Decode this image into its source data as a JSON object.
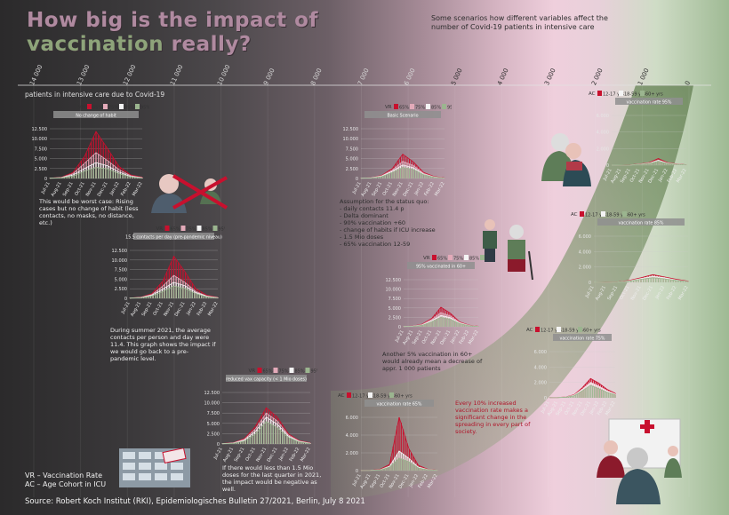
{
  "title_part1": "How big is the impact of ",
  "title_accent": "vaccination",
  "title_part2": " really?",
  "subtitle": "Some scenarios how different variables affect the number of Covid-19 patients in intensive care",
  "top_axis": {
    "labels": [
      "14 000",
      "13 000",
      "12 000",
      "11 000",
      "10 000",
      "9 000",
      "8 000",
      "7 000",
      "6 000",
      "5 000",
      "4 000",
      "3 000",
      "2 000",
      "1 000",
      "0"
    ]
  },
  "y_axis_caption": "patients in intensive care due to Covid-19",
  "legend_lines": [
    "VR – Vaccination Rate",
    "AC – Age Cohort in ICU"
  ],
  "source": "Source: Robert Koch Institut (RKI), Epidemiologisches Bulletin 27/2021, Berlin, July 8 2021",
  "notes": {
    "worst": "This would be worst case: Rising cases but no change of habit (less contacts, no masks, no distance, etc.)",
    "contacts": "During summer 2021, the average contacts per person and day were 11.4. This graph shows the impact if we would go back to a pre-pandemic level.",
    "doses": "If there would less than 1.5 Mio doses for the last quarter in 2021, the impact would be negative as well.",
    "basic": "Assumption for the status quo:\n- daily contacts 11.4 p\n- Delta dominant\n- 90% vaccination +60\n- change of habits if ICU increase\n- 1.5 Mio doses\n- 65% vaccination 12-59",
    "sixty": "Another 5% vaccination in 60+ would already mean a decrease of appr. 1 000 patients",
    "increase": "Every 10% increased vaccination rate makes a significant change in the spreading in every part of society."
  },
  "colors": {
    "red": "#c8102e",
    "pink": "#e3aab9",
    "white": "#f4f4f4",
    "green": "#9bb58f",
    "dark_green": "#5d7a55"
  },
  "chart_data": [
    {
      "type": "area",
      "title": "No change of habit",
      "legend_prefix": "VR",
      "legend": [
        "65%",
        "75%",
        "85%",
        "95%"
      ],
      "yticks": [
        "12.500",
        "10.000",
        "7.500",
        "5.000",
        "2.500",
        "0"
      ],
      "ymax": 12500,
      "x": [
        "Jul-21",
        "Aug-21",
        "Sep-21",
        "Oct-21",
        "Nov-21",
        "Dec-21",
        "Jan-22",
        "Feb-22",
        "Mar-22"
      ],
      "series": [
        {
          "name": "65%",
          "values": [
            100,
            300,
            1500,
            5500,
            11800,
            7500,
            3000,
            900,
            300
          ]
        },
        {
          "name": "75%",
          "values": [
            80,
            250,
            1200,
            3800,
            6500,
            4500,
            2200,
            700,
            200
          ]
        },
        {
          "name": "85%",
          "values": [
            60,
            200,
            900,
            2500,
            4000,
            3200,
            1600,
            500,
            150
          ]
        },
        {
          "name": "95%",
          "values": [
            40,
            150,
            600,
            1800,
            2800,
            2400,
            1200,
            400,
            100
          ]
        }
      ]
    },
    {
      "type": "area",
      "title": "15.5 contacts per day (pre-pandemic niveau)",
      "legend_prefix": "VR",
      "legend": [
        "65%",
        "75%",
        "85%",
        "95%"
      ],
      "yticks": [
        "12.500",
        "10.000",
        "7.500",
        "5.000",
        "2.500",
        "0"
      ],
      "ymax": 12500,
      "x": [
        "Jul-21",
        "Aug-21",
        "Sep-21",
        "Oct-21",
        "Nov-21",
        "Dec-21",
        "Jan-22",
        "Feb-22",
        "Mar-22"
      ],
      "series": [
        {
          "name": "65%",
          "values": [
            100,
            300,
            1200,
            4500,
            11000,
            7000,
            2500,
            800,
            250
          ]
        },
        {
          "name": "75%",
          "values": [
            80,
            250,
            1000,
            3200,
            6000,
            4200,
            1800,
            600,
            200
          ]
        },
        {
          "name": "85%",
          "values": [
            60,
            200,
            800,
            2400,
            4200,
            3300,
            1500,
            500,
            150
          ]
        },
        {
          "name": "95%",
          "values": [
            40,
            150,
            600,
            1800,
            3200,
            2600,
            1200,
            400,
            100
          ]
        }
      ]
    },
    {
      "type": "area",
      "title": "reduced vax capacity (< 1 Mio doses)",
      "legend_prefix": "VR",
      "legend": [
        "65%",
        "75%",
        "85%",
        "95%"
      ],
      "yticks": [
        "12.500",
        "10.000",
        "7.500",
        "5.000",
        "2.500",
        "0"
      ],
      "ymax": 12500,
      "x": [
        "Jul-21",
        "Aug-21",
        "Sep-21",
        "Oct-21",
        "Nov-21",
        "Dec-21",
        "Jan-22",
        "Feb-22",
        "Mar-22"
      ],
      "series": [
        {
          "name": "65%",
          "values": [
            100,
            300,
            1300,
            4200,
            8800,
            6500,
            2500,
            800,
            250
          ]
        },
        {
          "name": "75%",
          "values": [
            80,
            250,
            1100,
            3600,
            7500,
            5600,
            2200,
            700,
            200
          ]
        },
        {
          "name": "85%",
          "values": [
            60,
            200,
            900,
            3000,
            6500,
            4800,
            1900,
            600,
            150
          ]
        },
        {
          "name": "95%",
          "values": [
            40,
            150,
            700,
            2400,
            5400,
            4000,
            1600,
            500,
            100
          ]
        }
      ]
    },
    {
      "type": "area",
      "title": "Basic Scenario",
      "legend_prefix": "VR",
      "legend": [
        "65%",
        "75%",
        "85%",
        "95%"
      ],
      "yticks": [
        "12.500",
        "10.000",
        "7.500",
        "5.000",
        "2.500",
        "0"
      ],
      "ymax": 12500,
      "x": [
        "Jul-21",
        "Aug-21",
        "Sep-21",
        "Oct-21",
        "Nov-21",
        "Dec-21",
        "Jan-22",
        "Feb-22",
        "Mar-22"
      ],
      "series": [
        {
          "name": "65%",
          "values": [
            100,
            200,
            800,
            2500,
            6100,
            4200,
            1500,
            500,
            150
          ]
        },
        {
          "name": "75%",
          "values": [
            80,
            180,
            700,
            2100,
            4300,
            3300,
            1300,
            400,
            120
          ]
        },
        {
          "name": "85%",
          "values": [
            60,
            150,
            600,
            1800,
            3400,
            2700,
            1100,
            350,
            100
          ]
        },
        {
          "name": "95%",
          "values": [
            40,
            120,
            500,
            1500,
            2800,
            2300,
            950,
            300,
            80
          ]
        }
      ]
    },
    {
      "type": "area",
      "title": "95% vaccinated in 60+",
      "legend_prefix": "VR",
      "legend": [
        "65%",
        "75%",
        "85%",
        "95%"
      ],
      "yticks": [
        "12.500",
        "10.000",
        "7.500",
        "5.000",
        "2.500",
        "0"
      ],
      "ymax": 12500,
      "x": [
        "Jul-21",
        "Aug-21",
        "Sep-21",
        "Oct-21",
        "Nov-21",
        "Dec-21",
        "Jan-22",
        "Feb-22",
        "Mar-22"
      ],
      "series": [
        {
          "name": "65%",
          "values": [
            100,
            200,
            700,
            2200,
            5200,
            3600,
            1300,
            450,
            150
          ]
        },
        {
          "name": "75%",
          "values": [
            80,
            180,
            600,
            1900,
            3800,
            2900,
            1150,
            380,
            120
          ]
        },
        {
          "name": "85%",
          "values": [
            60,
            150,
            500,
            1600,
            3000,
            2400,
            1000,
            330,
            100
          ]
        },
        {
          "name": "95%",
          "values": [
            40,
            120,
            420,
            1300,
            2500,
            2000,
            850,
            280,
            80
          ]
        }
      ]
    },
    {
      "type": "area",
      "title": "vaccination rate 65%",
      "legend_prefix": "AC",
      "legend": [
        "12-17 yrs",
        "18-59 yrs",
        "60+ yrs"
      ],
      "yticks": [
        "6.000",
        "4.000",
        "2.000",
        "0"
      ],
      "ymax": 6000,
      "x": [
        "Jul-21",
        "Aug-21",
        "Sep-21",
        "Oct-21",
        "Nov-21",
        "Dec-21",
        "Jan-22",
        "Feb-22",
        "Mar-22"
      ],
      "series": [
        {
          "name": "12-17 yrs",
          "values": [
            20,
            40,
            150,
            700,
            6200,
            2500,
            600,
            150,
            50
          ]
        },
        {
          "name": "18-59 yrs",
          "values": [
            15,
            30,
            100,
            500,
            2200,
            1400,
            400,
            120,
            40
          ]
        },
        {
          "name": "60+ yrs",
          "values": [
            10,
            20,
            80,
            400,
            1400,
            1000,
            300,
            100,
            30
          ]
        }
      ]
    },
    {
      "type": "area",
      "title": "vaccination rate 75%",
      "legend_prefix": "AC",
      "legend": [
        "12-17 yrs",
        "18-59 yrs",
        "60+ yrs"
      ],
      "yticks": [
        "6.000",
        "4.000",
        "2.000",
        "0"
      ],
      "ymax": 6000,
      "x": [
        "Jul-21",
        "Aug-21",
        "Sep-21",
        "Oct-21",
        "Nov-21",
        "Dec-21",
        "Jan-22",
        "Feb-22",
        "Mar-22"
      ],
      "series": [
        {
          "name": "12-17 yrs",
          "values": [
            20,
            40,
            120,
            400,
            1300,
            2500,
            1900,
            1100,
            600
          ]
        },
        {
          "name": "18-59 yrs",
          "values": [
            15,
            30,
            100,
            350,
            1100,
            2000,
            1500,
            900,
            500
          ]
        },
        {
          "name": "60+ yrs",
          "values": [
            10,
            20,
            80,
            280,
            900,
            1600,
            1200,
            700,
            400
          ]
        }
      ]
    },
    {
      "type": "area",
      "title": "vaccination rate 85%",
      "legend_prefix": "AC",
      "legend": [
        "12-17 yrs",
        "18-59 yrs",
        "60+ yrs"
      ],
      "yticks": [
        "6.000",
        "4.000",
        "2.000",
        "0"
      ],
      "ymax": 6000,
      "x": [
        "Jul-21",
        "Aug-21",
        "Sep-21",
        "Oct-21",
        "Nov-21",
        "Dec-21",
        "Jan-22",
        "Feb-22",
        "Mar-22"
      ],
      "series": [
        {
          "name": "12-17 yrs",
          "values": [
            10,
            20,
            60,
            250,
            600,
            1000,
            700,
            400,
            150
          ]
        },
        {
          "name": "18-59 yrs",
          "values": [
            8,
            15,
            50,
            200,
            500,
            800,
            600,
            300,
            120
          ]
        },
        {
          "name": "60+ yrs",
          "values": [
            5,
            10,
            40,
            150,
            400,
            600,
            450,
            250,
            100
          ]
        }
      ]
    },
    {
      "type": "area",
      "title": "vaccination rate 95%",
      "legend_prefix": "AC",
      "legend": [
        "12-17 yrs",
        "18-59 yrs",
        "60+ yrs"
      ],
      "yticks": [
        "6.000",
        "4.000",
        "2.000",
        "0"
      ],
      "ymax": 6000,
      "x": [
        "Jul-21",
        "Aug-21",
        "Sep-21",
        "Oct-21",
        "Nov-21",
        "Dec-21",
        "Jan-22",
        "Feb-22",
        "Mar-22"
      ],
      "series": [
        {
          "name": "12-17 yrs",
          "values": [
            5,
            10,
            30,
            150,
            300,
            800,
            300,
            150,
            50
          ]
        },
        {
          "name": "18-59 yrs",
          "values": [
            4,
            8,
            25,
            120,
            250,
            600,
            250,
            120,
            40
          ]
        },
        {
          "name": "60+ yrs",
          "values": [
            3,
            6,
            20,
            100,
            200,
            450,
            200,
            100,
            30
          ]
        }
      ]
    }
  ]
}
